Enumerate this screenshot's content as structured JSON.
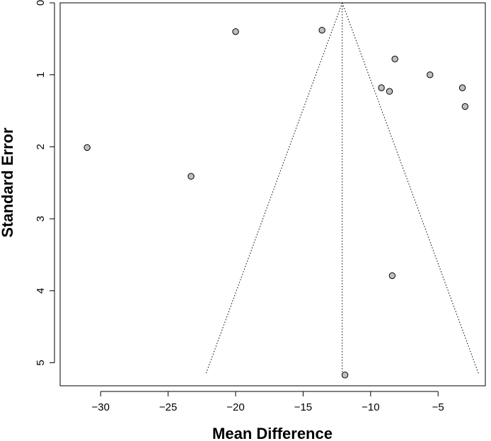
{
  "chart_data": {
    "type": "scatter",
    "title": "",
    "xlabel": "Mean Difference",
    "ylabel": "Standard Error",
    "xlim": [
      -33,
      -1.5
    ],
    "ylim": [
      0,
      5.32
    ],
    "y_reversed": true,
    "grid": false,
    "x_ticks": [
      -30,
      -25,
      -20,
      -15,
      -10,
      -5
    ],
    "x_tick_labels": [
      "−30",
      "−25",
      "−20",
      "−15",
      "−10",
      "−5"
    ],
    "y_ticks": [
      0,
      1,
      2,
      3,
      4,
      5
    ],
    "y_tick_labels": [
      "0",
      "1",
      "2",
      "3",
      "4",
      "5"
    ],
    "pooled_estimate": -12.1,
    "funnel_max_se": 5.15,
    "funnel_z": 1.96,
    "point_color": "#bfbfbf",
    "points": [
      {
        "x": -31.0,
        "y": 2.01
      },
      {
        "x": -23.3,
        "y": 2.41
      },
      {
        "x": -20.0,
        "y": 0.4
      },
      {
        "x": -13.6,
        "y": 0.38
      },
      {
        "x": -8.2,
        "y": 0.78
      },
      {
        "x": -9.2,
        "y": 1.18
      },
      {
        "x": -8.6,
        "y": 1.23
      },
      {
        "x": -5.6,
        "y": 1.0
      },
      {
        "x": -3.2,
        "y": 1.18
      },
      {
        "x": -3.0,
        "y": 1.44
      },
      {
        "x": -8.4,
        "y": 3.79
      },
      {
        "x": -11.9,
        "y": 5.17
      }
    ]
  }
}
